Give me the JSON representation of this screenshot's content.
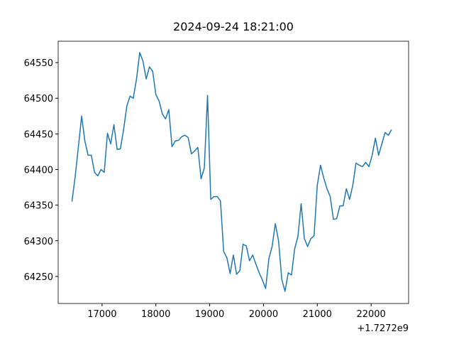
{
  "chart_data": {
    "type": "line",
    "title": "2024-09-24 18:21:00",
    "x_offset_label": "+1.7272e9",
    "x": [
      16440,
      16500,
      16560,
      16620,
      16680,
      16740,
      16800,
      16860,
      16920,
      16980,
      17040,
      17100,
      17160,
      17220,
      17280,
      17340,
      17400,
      17460,
      17520,
      17580,
      17640,
      17700,
      17760,
      17820,
      17880,
      17940,
      18000,
      18060,
      18120,
      18180,
      18240,
      18300,
      18360,
      18420,
      18480,
      18540,
      18600,
      18660,
      18720,
      18780,
      18840,
      18900,
      18960,
      19020,
      19080,
      19140,
      19200,
      19260,
      19320,
      19380,
      19440,
      19500,
      19560,
      19620,
      19680,
      19740,
      19800,
      19860,
      19920,
      19980,
      20040,
      20100,
      20160,
      20220,
      20280,
      20340,
      20400,
      20460,
      20520,
      20580,
      20640,
      20700,
      20760,
      20820,
      20880,
      20940,
      21000,
      21060,
      21120,
      21180,
      21240,
      21300,
      21360,
      21420,
      21480,
      21540,
      21600,
      21660,
      21720,
      21780,
      21840,
      21900,
      21960,
      22020,
      22080,
      22140,
      22200,
      22260,
      22320,
      22380
    ],
    "series": [
      {
        "color": "#1f77b4",
        "values": [
          64355,
          64390,
          64432,
          64475,
          64440,
          64420,
          64420,
          64396,
          64391,
          64400,
          64396,
          64451,
          64436,
          64463,
          64428,
          64429,
          64456,
          64489,
          64503,
          64500,
          64527,
          64564,
          64552,
          64527,
          64544,
          64538,
          64505,
          64496,
          64478,
          64471,
          64484,
          64432,
          64440,
          64441,
          64446,
          64448,
          64445,
          64422,
          64426,
          64431,
          64387,
          64402,
          64504,
          64358,
          64362,
          64362,
          64356,
          64285,
          64276,
          64254,
          64280,
          64253,
          64258,
          64295,
          64293,
          64272,
          64280,
          64267,
          64255,
          64245,
          64233,
          64275,
          64292,
          64324,
          64300,
          64246,
          64229,
          64255,
          64252,
          64289,
          64306,
          64352,
          64303,
          64292,
          64303,
          64307,
          64378,
          64406,
          64388,
          64373,
          64362,
          64330,
          64331,
          64349,
          64349,
          64373,
          64358,
          64378,
          64409,
          64406,
          64404,
          64410,
          64404,
          64420,
          64444,
          64420,
          64436,
          64452,
          64448,
          64456
        ]
      }
    ],
    "xlim": [
      16184,
      22697
    ],
    "ylim": [
      64212,
      64580
    ],
    "xticks": [
      17000,
      18000,
      19000,
      20000,
      21000,
      22000
    ],
    "yticks": [
      64250,
      64300,
      64350,
      64400,
      64450,
      64500,
      64550
    ]
  }
}
